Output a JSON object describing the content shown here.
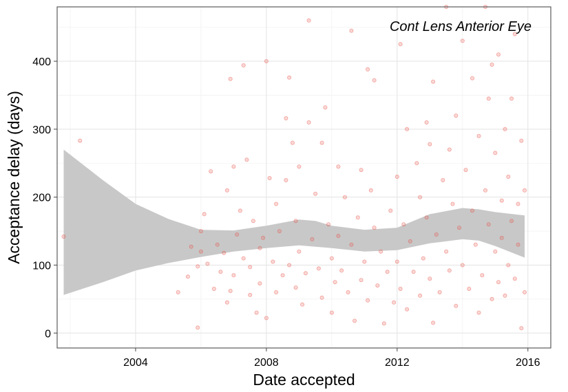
{
  "chart_data": {
    "type": "scatter",
    "title": "Cont Lens Anterior Eye",
    "xlabel": "Date accepted",
    "ylabel": "Acceptance delay (days)",
    "xlim": [
      2001.6,
      2016.7
    ],
    "ylim": [
      -22,
      480
    ],
    "xticks": [
      2004,
      2008,
      2012,
      2016
    ],
    "yticks": [
      0,
      100,
      200,
      300,
      400
    ],
    "grid": true,
    "point_color": "#e8534a",
    "band_color": "#c8c8c8",
    "smooth": {
      "x": [
        2001.8,
        2003,
        2004,
        2005,
        2006,
        2007,
        2008,
        2009,
        2009.5,
        2010,
        2011,
        2012,
        2013,
        2014,
        2014.5,
        2015,
        2015.9
      ],
      "upper": [
        270,
        225,
        190,
        168,
        152,
        151,
        158,
        167,
        165,
        158,
        152,
        155,
        175,
        184,
        182,
        178,
        173
      ],
      "lower": [
        56,
        75,
        92,
        103,
        112,
        120,
        125,
        129,
        127,
        125,
        120,
        122,
        132,
        138,
        136,
        128,
        111
      ]
    },
    "points": [
      [
        2001.8,
        142
      ],
      [
        2002.3,
        283
      ],
      [
        2005.3,
        60
      ],
      [
        2005.6,
        83
      ],
      [
        2005.7,
        127
      ],
      [
        2005.9,
        8
      ],
      [
        2005.9,
        98
      ],
      [
        2006.0,
        120
      ],
      [
        2006.0,
        150
      ],
      [
        2006.1,
        175
      ],
      [
        2006.2,
        102
      ],
      [
        2006.3,
        238
      ],
      [
        2006.4,
        65
      ],
      [
        2006.5,
        130
      ],
      [
        2006.6,
        90
      ],
      [
        2006.7,
        118
      ],
      [
        2006.8,
        45
      ],
      [
        2006.8,
        210
      ],
      [
        2006.9,
        374
      ],
      [
        2006.9,
        62
      ],
      [
        2007.0,
        245
      ],
      [
        2007.0,
        85
      ],
      [
        2007.1,
        145
      ],
      [
        2007.2,
        180
      ],
      [
        2007.3,
        394
      ],
      [
        2007.3,
        110
      ],
      [
        2007.4,
        255
      ],
      [
        2007.5,
        56
      ],
      [
        2007.5,
        97
      ],
      [
        2007.6,
        165
      ],
      [
        2007.7,
        30
      ],
      [
        2007.8,
        73
      ],
      [
        2007.8,
        125
      ],
      [
        2007.9,
        140
      ],
      [
        2008.0,
        22
      ],
      [
        2008.0,
        400
      ],
      [
        2008.1,
        228
      ],
      [
        2008.2,
        105
      ],
      [
        2008.3,
        60
      ],
      [
        2008.3,
        190
      ],
      [
        2008.4,
        150
      ],
      [
        2008.5,
        85
      ],
      [
        2008.6,
        316
      ],
      [
        2008.6,
        225
      ],
      [
        2008.7,
        376
      ],
      [
        2008.7,
        100
      ],
      [
        2008.8,
        280
      ],
      [
        2008.9,
        67
      ],
      [
        2008.9,
        165
      ],
      [
        2009.0,
        245
      ],
      [
        2009.0,
        120
      ],
      [
        2009.1,
        42
      ],
      [
        2009.2,
        88
      ],
      [
        2009.3,
        310
      ],
      [
        2009.3,
        460
      ],
      [
        2009.4,
        138
      ],
      [
        2009.5,
        205
      ],
      [
        2009.6,
        95
      ],
      [
        2009.7,
        280
      ],
      [
        2009.7,
        52
      ],
      [
        2009.8,
        332
      ],
      [
        2009.9,
        160
      ],
      [
        2010.0,
        110
      ],
      [
        2010.0,
        30
      ],
      [
        2010.1,
        75
      ],
      [
        2010.2,
        245
      ],
      [
        2010.2,
        143
      ],
      [
        2010.3,
        92
      ],
      [
        2010.4,
        200
      ],
      [
        2010.5,
        60
      ],
      [
        2010.6,
        445
      ],
      [
        2010.6,
        130
      ],
      [
        2010.7,
        18
      ],
      [
        2010.8,
        170
      ],
      [
        2010.9,
        240
      ],
      [
        2010.9,
        78
      ],
      [
        2011.0,
        105
      ],
      [
        2011.1,
        388
      ],
      [
        2011.1,
        48
      ],
      [
        2011.2,
        210
      ],
      [
        2011.3,
        372
      ],
      [
        2011.3,
        155
      ],
      [
        2011.4,
        70
      ],
      [
        2011.5,
        120
      ],
      [
        2011.6,
        14
      ],
      [
        2011.7,
        90
      ],
      [
        2011.8,
        180
      ],
      [
        2011.9,
        45
      ],
      [
        2012.0,
        105
      ],
      [
        2012.0,
        230
      ],
      [
        2012.1,
        425
      ],
      [
        2012.1,
        65
      ],
      [
        2012.2,
        160
      ],
      [
        2012.3,
        300
      ],
      [
        2012.3,
        35
      ],
      [
        2012.4,
        135
      ],
      [
        2012.5,
        90
      ],
      [
        2012.6,
        250
      ],
      [
        2012.7,
        200
      ],
      [
        2012.7,
        55
      ],
      [
        2012.8,
        110
      ],
      [
        2012.9,
        310
      ],
      [
        2012.9,
        170
      ],
      [
        2013.0,
        80
      ],
      [
        2013.0,
        278
      ],
      [
        2013.1,
        15
      ],
      [
        2013.1,
        370
      ],
      [
        2013.2,
        145
      ],
      [
        2013.3,
        60
      ],
      [
        2013.4,
        225
      ],
      [
        2013.5,
        120
      ],
      [
        2013.5,
        480
      ],
      [
        2013.6,
        270
      ],
      [
        2013.6,
        92
      ],
      [
        2013.7,
        190
      ],
      [
        2013.8,
        320
      ],
      [
        2013.8,
        40
      ],
      [
        2013.9,
        155
      ],
      [
        2014.0,
        430
      ],
      [
        2014.0,
        100
      ],
      [
        2014.1,
        240
      ],
      [
        2014.2,
        65
      ],
      [
        2014.3,
        180
      ],
      [
        2014.3,
        375
      ],
      [
        2014.4,
        130
      ],
      [
        2014.5,
        30
      ],
      [
        2014.5,
        290
      ],
      [
        2014.6,
        85
      ],
      [
        2014.7,
        210
      ],
      [
        2014.7,
        480
      ],
      [
        2014.8,
        345
      ],
      [
        2014.8,
        160
      ],
      [
        2014.9,
        50
      ],
      [
        2014.9,
        395
      ],
      [
        2015.0,
        120
      ],
      [
        2015.0,
        265
      ],
      [
        2015.1,
        410
      ],
      [
        2015.1,
        75
      ],
      [
        2015.2,
        195
      ],
      [
        2015.2,
        140
      ],
      [
        2015.3,
        300
      ],
      [
        2015.3,
        55
      ],
      [
        2015.4,
        230
      ],
      [
        2015.4,
        100
      ],
      [
        2015.5,
        345
      ],
      [
        2015.5,
        165
      ],
      [
        2015.6,
        80
      ],
      [
        2015.6,
        440
      ],
      [
        2015.7,
        190
      ],
      [
        2015.7,
        130
      ],
      [
        2015.8,
        283
      ],
      [
        2015.8,
        7
      ],
      [
        2015.9,
        60
      ],
      [
        2015.9,
        210
      ]
    ]
  }
}
